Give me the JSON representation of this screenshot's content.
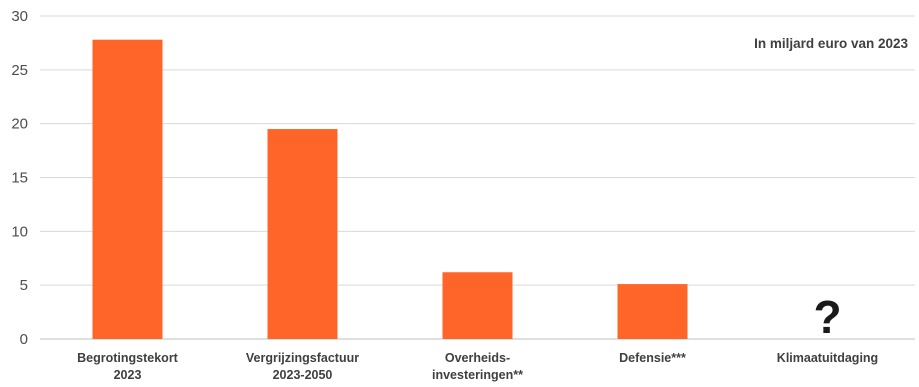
{
  "chart_data": {
    "type": "bar",
    "title": "",
    "annotation": "In miljard euro van 2023",
    "categories": [
      [
        "Begrotingstekort",
        "2023"
      ],
      [
        "Vergrijzingsfactuur",
        "2023-2050"
      ],
      [
        "Overheids-",
        "investeringen**"
      ],
      [
        "Defensie***"
      ],
      [
        "Klimaatuitdaging"
      ]
    ],
    "values": [
      27.8,
      19.5,
      6.2,
      5.1,
      null
    ],
    "bar_placeholder": [
      "",
      "",
      "",
      "",
      "?"
    ],
    "yticks": [
      0,
      5,
      10,
      15,
      20,
      25,
      30
    ],
    "ylim": [
      0,
      30
    ],
    "grid": true,
    "colors": {
      "bar": "#ff6428",
      "grid": "#d9d9d9",
      "axis": "#bfbfbf"
    }
  }
}
